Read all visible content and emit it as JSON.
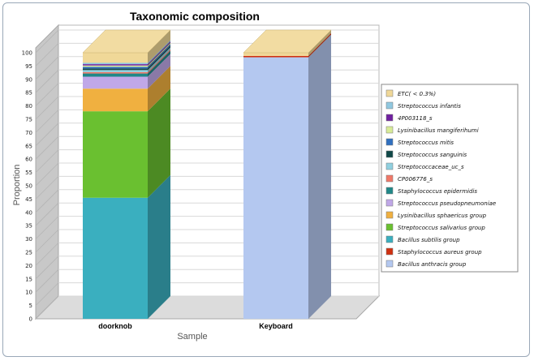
{
  "chart_data": {
    "type": "bar",
    "stacked": true,
    "title": "Taxonomic composition",
    "xlabel": "Sample",
    "ylabel": "Proportion",
    "ylim": [
      0,
      100
    ],
    "yticks": [
      "0",
      "5",
      "10",
      "15",
      "20",
      "25",
      "30",
      "35",
      "40",
      "45",
      "50",
      "55",
      "60",
      "65",
      "70",
      "75",
      "80",
      "85",
      "90",
      "95",
      "100"
    ],
    "categories": [
      "doorknob",
      "Keyboard"
    ],
    "legend_position": "right",
    "series": [
      {
        "name": "Bacillus anthracis group",
        "color": "#b4c8f0",
        "values": [
          0,
          98.3
        ]
      },
      {
        "name": "Staphylococcus aureus group",
        "color": "#d03010",
        "values": [
          0,
          0.5
        ]
      },
      {
        "name": "Bacillus subtilis group",
        "color": "#3aafbf",
        "values": [
          45.5,
          0
        ]
      },
      {
        "name": "Streptococcus salivarius group",
        "color": "#6ac030",
        "values": [
          32.5,
          0
        ]
      },
      {
        "name": "Lysinibacillus sphaericus group",
        "color": "#f0b040",
        "values": [
          8.5,
          0
        ]
      },
      {
        "name": "Streptococcus pseudopneumoniae",
        "color": "#c0a8e8",
        "values": [
          4.5,
          0
        ]
      },
      {
        "name": "Staphylococcus epidermidis",
        "color": "#208888",
        "values": [
          1.2,
          0
        ]
      },
      {
        "name": "CP006776_s",
        "color": "#f07868",
        "values": [
          0.5,
          0
        ]
      },
      {
        "name": "Streptococcaceae_uc_s",
        "color": "#90d0e0",
        "values": [
          0.8,
          0
        ]
      },
      {
        "name": "Streptococcus sanguinis",
        "color": "#104848",
        "values": [
          0.6,
          0
        ]
      },
      {
        "name": "Streptococcus mitis",
        "color": "#3070c0",
        "values": [
          0.6,
          0
        ]
      },
      {
        "name": "Lysinibacillus mangiferihumi",
        "color": "#d8ec98",
        "values": [
          0.5,
          0
        ]
      },
      {
        "name": "4P003118_s",
        "color": "#7020a0",
        "values": [
          0.5,
          0
        ]
      },
      {
        "name": "Streptococcus infantis",
        "color": "#90c8e0",
        "values": [
          0.5,
          0
        ]
      },
      {
        "name": "ETC( < 0.3%)",
        "color": "#f0d898",
        "values": [
          3.8,
          1.2
        ]
      }
    ]
  }
}
